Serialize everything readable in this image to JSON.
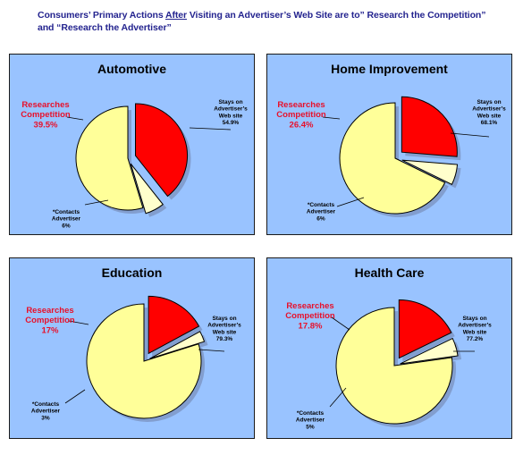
{
  "page_title": {
    "part1": "Consumers’ Primary Actions ",
    "emph": "After",
    "part2": " Visiting an Advertiser’s Web Site are to” Research the Competition”",
    "line2": "and “Research the Advertiser”"
  },
  "colors": {
    "panel_bg": "#99c3ff",
    "researches": "#ff0000",
    "stays": "#ffff99",
    "contacts": "#ffffcc",
    "research_label": "#e8102a"
  },
  "chart_data": [
    {
      "type": "pie",
      "title": "Automotive",
      "slices": [
        {
          "label": "Researches Competition",
          "value": 39.5,
          "value_label": "39.5%"
        },
        {
          "label": "*Contacts Advertiser",
          "value": 6,
          "value_label": "6%"
        },
        {
          "label": "Stays on Advertiser’s Web site",
          "value": 54.9,
          "value_label": "54.9%"
        }
      ]
    },
    {
      "type": "pie",
      "title": "Home Improvement",
      "slices": [
        {
          "label": "Researches Competition",
          "value": 26.4,
          "value_label": "26.4%"
        },
        {
          "label": "*Contacts Advertiser",
          "value": 6,
          "value_label": "6%"
        },
        {
          "label": "Stays on Advertiser’s Web site",
          "value": 68.1,
          "value_label": "68.1%"
        }
      ]
    },
    {
      "type": "pie",
      "title": "Education",
      "slices": [
        {
          "label": "Researches Competition",
          "value": 17,
          "value_label": "17%"
        },
        {
          "label": "*Contacts Advertiser",
          "value": 3,
          "value_label": "3%"
        },
        {
          "label": "Stays on Advertiser’s Web site",
          "value": 79.3,
          "value_label": "79.3%"
        }
      ]
    },
    {
      "type": "pie",
      "title": "Health Care",
      "slices": [
        {
          "label": "Researches Competition",
          "value": 17.8,
          "value_label": "17.8%"
        },
        {
          "label": "*Contacts Advertiser",
          "value": 5,
          "value_label": "5%"
        },
        {
          "label": "Stays on Advertiser’s Web site",
          "value": 77.2,
          "value_label": "77.2%"
        }
      ]
    }
  ]
}
